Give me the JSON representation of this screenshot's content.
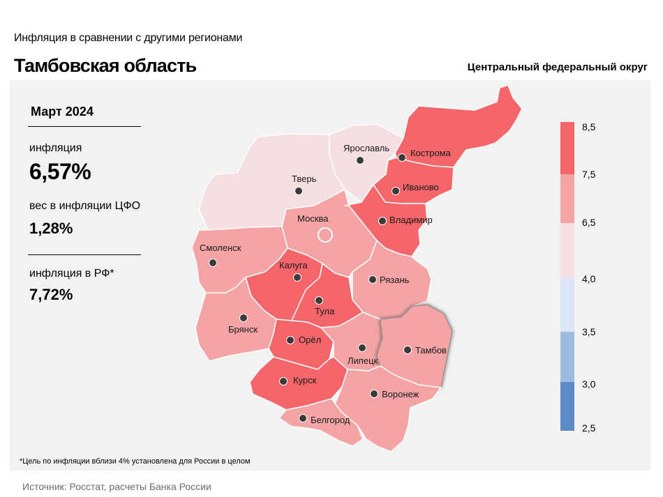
{
  "header": {
    "subtitle": "Инфляция  в сравнении  с другими  регионами",
    "title": "Тамбовская область",
    "district": "Центральный федеральный округ"
  },
  "stats": {
    "period": "Март 2024",
    "inflation_label": "инфляция",
    "inflation_value": "6,57%",
    "weight_label": "вес в инфляции  ЦФО",
    "weight_value": "1,28%",
    "rf_label": "инфляция  в РФ*",
    "rf_value": "7,72%"
  },
  "legend": {
    "ticks": [
      "8,5",
      "7,5",
      "6,5",
      "4,0",
      "3,5",
      "3,0",
      "2,5"
    ],
    "colors": [
      "#f4666a",
      "#f4a4a5",
      "#f6dfe1",
      "#dde6f4",
      "#9fbadf",
      "#5b8bc8"
    ]
  },
  "map": {
    "highlighted_region": "Тамбов",
    "regions": [
      {
        "name": "Ярославль",
        "color": "#f6dfe1"
      },
      {
        "name": "Кострома",
        "color": "#f4666a"
      },
      {
        "name": "Тверь",
        "color": "#f6dfe1"
      },
      {
        "name": "Иваново",
        "color": "#f4666a"
      },
      {
        "name": "Москва",
        "color": "#f4a4a5"
      },
      {
        "name": "Владимир",
        "color": "#f4666a"
      },
      {
        "name": "Смоленск",
        "color": "#f4a4a5"
      },
      {
        "name": "Калуга",
        "color": "#f4666a"
      },
      {
        "name": "Рязань",
        "color": "#f4a4a5"
      },
      {
        "name": "Тула",
        "color": "#f4666a"
      },
      {
        "name": "Брянск",
        "color": "#f4a4a5"
      },
      {
        "name": "Орёл",
        "color": "#f4666a"
      },
      {
        "name": "Липецк",
        "color": "#f4a4a5"
      },
      {
        "name": "Тамбов",
        "color": "#f4a4a5"
      },
      {
        "name": "Курск",
        "color": "#f4666a"
      },
      {
        "name": "Воронеж",
        "color": "#f4a4a5"
      },
      {
        "name": "Белгород",
        "color": "#f4a4a5"
      }
    ]
  },
  "footnote": "*Цель по инфляции вблизи 4% установлена для России в целом",
  "source": "Источник: Росстат, расчеты Банка России"
}
